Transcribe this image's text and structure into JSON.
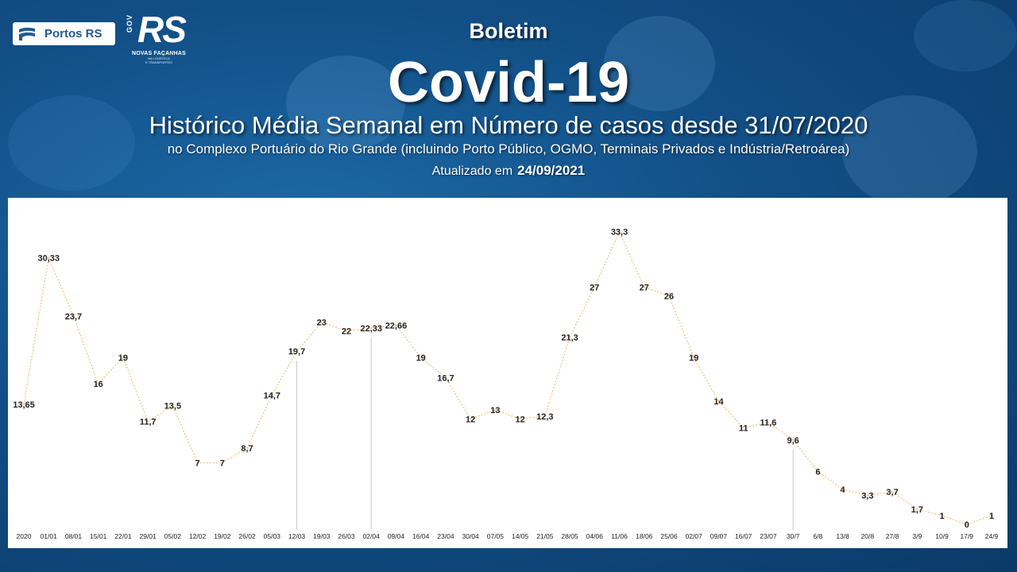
{
  "header": {
    "portos_logo_text": "Portos RS",
    "rs_logo": {
      "gov": "GOV",
      "big": "RS",
      "slogan": "NOVAS FAÇANHAS",
      "tagline_1": "NA LOGÍSTICA",
      "tagline_2": "E TRANSPORTES"
    },
    "kicker": "Boletim",
    "title": "Covid-19",
    "subtitle": "Histórico Média Semanal em Número de casos desde 31/07/2020",
    "description": "no Complexo Portuário do Rio Grande (incluindo Porto Público, OGMO, Terminais Privados e Indústria/Retroárea)",
    "updated_label": "Atualizado em",
    "updated_date": "24/09/2021"
  },
  "colors": {
    "background": "#124f86",
    "line": "#f2c98a",
    "drop_line": "#c8c8c8",
    "label_text": "#222222"
  },
  "chart_data": {
    "type": "line",
    "title": "",
    "xlabel": "",
    "ylabel": "",
    "ylim": [
      0,
      34
    ],
    "grid": false,
    "categories": [
      "2020",
      "01/01",
      "08/01",
      "15/01",
      "22/01",
      "29/01",
      "05/02",
      "12/02",
      "19/02",
      "26/02",
      "05/03",
      "12/03",
      "19/03",
      "26/03",
      "02/04",
      "09/04",
      "16/04",
      "23/04",
      "30/04",
      "07/05",
      "14/05",
      "21/05",
      "28/05",
      "04/06",
      "11/06",
      "18/06",
      "25/06",
      "02/07",
      "09/07",
      "16/07",
      "23/07",
      "30/7",
      "6/8",
      "13/8",
      "20/8",
      "27/8",
      "3/9",
      "10/9",
      "17/9",
      "24/9"
    ],
    "values": [
      13.65,
      30.33,
      23.7,
      16,
      19,
      11.7,
      13.5,
      7,
      7,
      8.7,
      14.7,
      19.7,
      23,
      22,
      22.33,
      22.66,
      19,
      16.7,
      12,
      13,
      12,
      12.3,
      21.3,
      27,
      33.3,
      27,
      26,
      19,
      14,
      11,
      11.6,
      9.6,
      6,
      4,
      3.3,
      3.7,
      1.7,
      1,
      0,
      1
    ],
    "data_labels": [
      "13,65",
      "30,33",
      "23,7",
      "16",
      "19",
      "11,7",
      "13,5",
      "7",
      "7",
      "8,7",
      "14,7",
      "19,7",
      "23",
      "22",
      "22,33",
      "22,66",
      "19",
      "16,7",
      "12",
      "13",
      "12",
      "12,3",
      "21,3",
      "27",
      "33,3",
      "27",
      "26",
      "19",
      "14",
      "11",
      "11,6",
      "9,6",
      "6",
      "4",
      "3,3",
      "3,7",
      "1,7",
      "1",
      "0",
      "1"
    ],
    "drop_lines_at": [
      "12/03",
      "02/04",
      "30/7"
    ]
  }
}
